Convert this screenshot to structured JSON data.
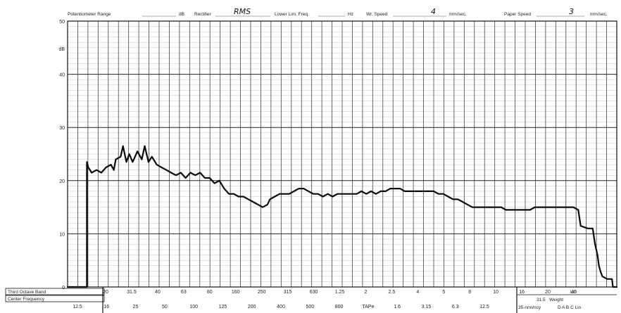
{
  "header": {
    "pot_range_label": "Potentiometer Range",
    "pot_range_unit": "dB",
    "rectifier_label": "Rectifier",
    "rectifier_value": "RMS",
    "lower_lim_label": "Lower Lim. Freq.",
    "lower_lim_unit": "Hz",
    "wr_speed_label": "Wr. Speed",
    "wr_speed_value": "4",
    "wr_speed_unit": "mm/sec.",
    "paper_speed_label": "Paper Speed",
    "paper_speed_value": "3",
    "paper_speed_unit": "mm/sec."
  },
  "footer": {
    "third_octave_label": "Third Octave Band",
    "center_frequency_label": "Center Frequency",
    "weight_label": "Weight",
    "weight_label_value": "31.5",
    "weight_options": "D A B C Lin",
    "weight_prefix": "35-nnn/ncy",
    "lin_label": "Lin"
  },
  "chart_data": {
    "type": "line",
    "title": "",
    "xlabel": "",
    "ylabel": "",
    "ylim": [
      0,
      50
    ],
    "y_ticks": [
      0,
      10,
      20,
      30,
      40,
      50
    ],
    "y_extra_label": "dB",
    "grid": true,
    "x_ticks_upper": [
      "20",
      "31.5",
      "40",
      "63",
      "80",
      "160",
      "250",
      "315",
      "630",
      "1.25",
      "2",
      "2.5",
      "4",
      "5",
      "8",
      "10",
      "16",
      "20",
      "40"
    ],
    "x_ticks_lower": [
      "12.5",
      "16",
      "25",
      "50",
      "100",
      "125",
      "200",
      "400",
      "500",
      "800",
      "TAPe",
      "1.6",
      "3.15",
      "6.3",
      "12.5"
    ],
    "series": [
      {
        "values": [
          [
            0,
            0
          ],
          [
            4,
            0
          ],
          [
            4,
            23.5
          ],
          [
            4.3,
            22.5
          ],
          [
            5,
            21.5
          ],
          [
            6,
            22
          ],
          [
            7,
            21.5
          ],
          [
            8,
            22.5
          ],
          [
            9,
            23
          ],
          [
            9.6,
            22
          ],
          [
            10,
            24
          ],
          [
            11,
            24.5
          ],
          [
            11.5,
            26.5
          ],
          [
            12.2,
            23.5
          ],
          [
            12.8,
            25
          ],
          [
            13.5,
            23.5
          ],
          [
            14.5,
            25.5
          ],
          [
            15.4,
            24
          ],
          [
            16,
            26.5
          ],
          [
            16.8,
            23.5
          ],
          [
            17.5,
            24.5
          ],
          [
            18.5,
            23
          ],
          [
            19.5,
            22.5
          ],
          [
            20.5,
            22
          ],
          [
            21.5,
            21.5
          ],
          [
            22.5,
            21
          ],
          [
            23.5,
            21.5
          ],
          [
            24.5,
            20.5
          ],
          [
            25.5,
            21.5
          ],
          [
            26.5,
            21
          ],
          [
            27.5,
            21.5
          ],
          [
            28.5,
            20.5
          ],
          [
            29.5,
            20.5
          ],
          [
            30.5,
            19.5
          ],
          [
            31.5,
            20
          ],
          [
            32.5,
            18.5
          ],
          [
            33.5,
            17.5
          ],
          [
            34.5,
            17.5
          ],
          [
            35.5,
            17
          ],
          [
            36.5,
            17
          ],
          [
            37.5,
            16.5
          ],
          [
            38.5,
            16
          ],
          [
            39.5,
            15.5
          ],
          [
            40.5,
            15
          ],
          [
            41.5,
            15.5
          ],
          [
            42,
            16.5
          ],
          [
            43,
            17
          ],
          [
            44,
            17.5
          ],
          [
            45,
            17.5
          ],
          [
            46,
            17.5
          ],
          [
            47,
            18
          ],
          [
            48,
            18.5
          ],
          [
            49,
            18.5
          ],
          [
            50,
            18
          ],
          [
            51,
            17.5
          ],
          [
            52,
            17.5
          ],
          [
            53,
            17
          ],
          [
            54,
            17.5
          ],
          [
            55,
            17
          ],
          [
            56,
            17.5
          ],
          [
            57,
            17.5
          ],
          [
            58,
            17.5
          ],
          [
            59,
            17.5
          ],
          [
            60,
            17.5
          ],
          [
            61,
            18
          ],
          [
            62,
            17.5
          ],
          [
            63,
            18
          ],
          [
            64,
            17.5
          ],
          [
            65,
            18
          ],
          [
            66,
            18
          ],
          [
            67,
            18.5
          ],
          [
            68,
            18.5
          ],
          [
            69,
            18.5
          ],
          [
            70,
            18
          ],
          [
            71,
            18
          ],
          [
            72,
            18
          ],
          [
            73,
            18
          ],
          [
            74,
            18
          ],
          [
            75,
            18
          ],
          [
            76,
            18
          ],
          [
            77,
            17.5
          ],
          [
            78,
            17.5
          ],
          [
            79,
            17
          ],
          [
            80,
            16.5
          ],
          [
            81,
            16.5
          ],
          [
            82,
            16
          ],
          [
            83,
            15.5
          ],
          [
            84,
            15
          ],
          [
            85,
            15
          ],
          [
            86,
            15
          ],
          [
            87,
            15
          ],
          [
            88,
            15
          ],
          [
            89,
            15
          ],
          [
            90,
            15
          ],
          [
            91,
            14.5
          ],
          [
            92,
            14.5
          ],
          [
            93,
            14.5
          ],
          [
            94,
            14.5
          ],
          [
            95,
            14.5
          ],
          [
            96,
            14.5
          ],
          [
            97,
            15
          ],
          [
            98,
            15
          ],
          [
            99,
            15
          ],
          [
            100,
            15
          ],
          [
            101,
            15
          ],
          [
            102,
            15
          ],
          [
            103,
            15
          ],
          [
            104,
            15
          ],
          [
            105,
            15
          ],
          [
            106,
            14.5
          ],
          [
            106.5,
            11.5
          ],
          [
            108,
            11
          ],
          [
            109,
            11
          ],
          [
            109.5,
            8
          ],
          [
            110,
            6
          ],
          [
            110.3,
            4
          ],
          [
            110.6,
            3
          ],
          [
            111,
            2
          ],
          [
            112,
            1.5
          ],
          [
            113,
            1.5
          ],
          [
            113.2,
            0
          ],
          [
            114,
            0
          ]
        ]
      }
    ]
  }
}
